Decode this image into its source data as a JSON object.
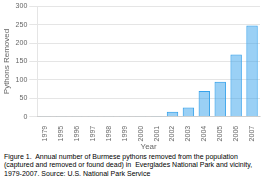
{
  "chart_data": {
    "type": "bar",
    "categories": [
      "1979",
      "1995",
      "1996",
      "1997",
      "1998",
      "1999",
      "2000",
      "2001",
      "2002",
      "2003",
      "2004",
      "2005",
      "2006",
      "2007"
    ],
    "values": [
      1,
      1,
      1,
      1,
      1,
      1,
      1,
      2,
      14,
      25,
      70,
      95,
      169,
      248
    ],
    "xlabel": "Year",
    "ylabel": "Pythons Removed",
    "ylim": [
      0,
      300
    ],
    "yticks": [
      0,
      50,
      100,
      150,
      200,
      250,
      300
    ],
    "grid": true,
    "caption": "Figure 1.  Annual number of Burmese pythons removed from the population (captured and removed or found dead) in  Everglades National Park and vicinity, 1979-2007. Source: U.S. National Park Service"
  }
}
